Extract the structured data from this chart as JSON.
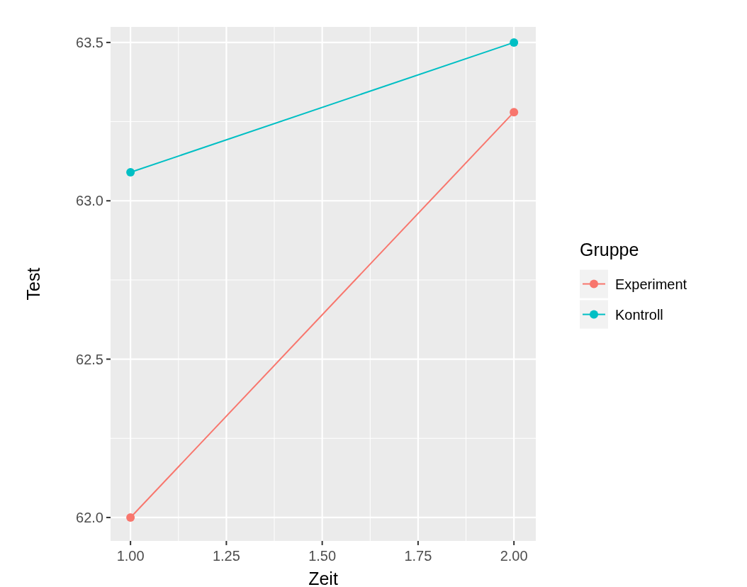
{
  "chart_data": {
    "type": "line",
    "xlabel": "Zeit",
    "ylabel": "Test",
    "legend_title": "Gruppe",
    "legend": "right",
    "grid": true,
    "marker": "circle",
    "line_style": "solid",
    "x": [
      1,
      2
    ],
    "series": [
      {
        "name": "Experiment",
        "color": "#f8766d",
        "values": [
          62.0,
          63.28
        ]
      },
      {
        "name": "Kontroll",
        "color": "#00bfc4",
        "values": [
          63.09,
          63.5
        ]
      }
    ],
    "xlim": [
      0.948,
      2.057
    ],
    "xticks": [
      {
        "value": 1,
        "label": "1.00"
      },
      {
        "value": 1.25,
        "label": "1.25"
      },
      {
        "value": 1.5,
        "label": "1.50"
      },
      {
        "value": 1.75,
        "label": "1.75"
      },
      {
        "value": 2,
        "label": "2.00"
      }
    ],
    "ylim": [
      61.926,
      63.549
    ],
    "yticks": [
      {
        "value": 62,
        "label": "62.0"
      },
      {
        "value": 62.5,
        "label": "62.5"
      },
      {
        "value": 63,
        "label": "63.0"
      },
      {
        "value": 63.5,
        "label": "63.5"
      }
    ]
  }
}
